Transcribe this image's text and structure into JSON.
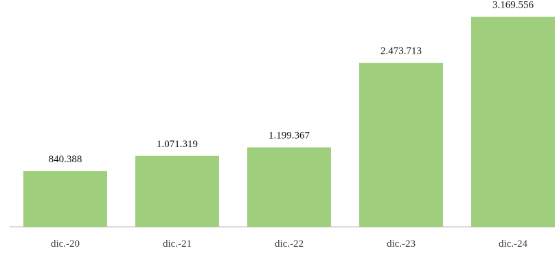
{
  "chart_data": {
    "type": "bar",
    "categories": [
      "dic.-20",
      "dic.-21",
      "dic.-22",
      "dic.-23",
      "dic.-24"
    ],
    "values": [
      840388,
      1071319,
      1199367,
      2473713,
      3169556
    ],
    "data_labels": [
      "840.388",
      "1.071.319",
      "1.199.367",
      "2.473.713",
      "3.169.556"
    ],
    "title": "",
    "xlabel": "",
    "ylabel": "",
    "ylim": [
      0,
      3300000
    ],
    "grid": false,
    "legend": "none",
    "bar_color": "#9fcf7c",
    "axis_color": "#d0d0d0"
  }
}
